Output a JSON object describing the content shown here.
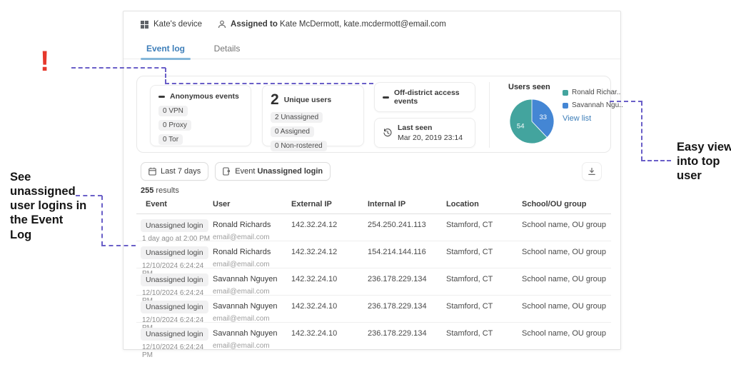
{
  "header": {
    "device_name": "Kate's device",
    "assigned_label": "Assigned to",
    "assigned_value": " Kate McDermott, kate.mcdermott@email.com"
  },
  "tabs": {
    "event_log": "Event log",
    "details": "Details"
  },
  "summary": {
    "anonymous": {
      "title": "Anonymous events",
      "value": "—",
      "badges": [
        "0 VPN",
        "0 Proxy",
        "0 Tor"
      ]
    },
    "unique_users": {
      "title": "Unique users",
      "value": "2",
      "badges": [
        "2 Unassigned",
        "0 Assigned",
        "0 Non-rostered"
      ]
    },
    "off_district": {
      "title": "Off-district access events",
      "value": "—"
    },
    "last_seen": {
      "label": "Last seen",
      "value": "Mar 20, 2019 23:14"
    }
  },
  "users_seen": {
    "title": "Users seen",
    "view_list_label": "View list",
    "chart_data": {
      "type": "pie",
      "title": "Users seen",
      "segments": [
        {
          "label": "Ronald Richar..",
          "value": 54,
          "color": "#43a49e"
        },
        {
          "label": "Savannah Ngu..",
          "value": 33,
          "color": "#4486d4"
        }
      ],
      "legend_position": "right",
      "data_labels": "values shown in white inside slices"
    }
  },
  "filters": {
    "date_chip": "Last 7 days",
    "event_chip_label": "Event ",
    "event_chip_value": "Unassigned login"
  },
  "results": {
    "count": "255",
    "label": " results"
  },
  "table": {
    "columns": [
      "Event",
      "User",
      "External IP",
      "Internal IP",
      "Location",
      "School/OU group"
    ],
    "rows": [
      {
        "event": "Unassigned login",
        "time": "1 day ago at 2:00 PM",
        "user": "Ronald Richards",
        "email": "email@email.com",
        "external_ip": "142.32.24.12",
        "internal_ip": "254.250.241.113",
        "location": "Stamford, CT",
        "school": "School name, OU group"
      },
      {
        "event": "Unassigned login",
        "time": "12/10/2024 6:24:24 PM",
        "user": "Ronald Richards",
        "email": "email@email.com",
        "external_ip": "142.32.24.12",
        "internal_ip": "154.214.144.116",
        "location": "Stamford, CT",
        "school": "School name, OU group"
      },
      {
        "event": "Unassigned login",
        "time": "12/10/2024 6:24:24 PM",
        "user": "Savannah Nguyen",
        "email": "email@email.com",
        "external_ip": "142.32.24.10",
        "internal_ip": "236.178.229.134",
        "location": "Stamford, CT",
        "school": "School name, OU group"
      },
      {
        "event": "Unassigned login",
        "time": "12/10/2024 6:24:24 PM",
        "user": "Savannah Nguyen",
        "email": "email@email.com",
        "external_ip": "142.32.24.10",
        "internal_ip": "236.178.229.134",
        "location": "Stamford, CT",
        "school": "School name, OU group"
      },
      {
        "event": "Unassigned login",
        "time": "12/10/2024 6:24:24 PM",
        "user": "Savannah Nguyen",
        "email": "email@email.com",
        "external_ip": "142.32.24.10",
        "internal_ip": "236.178.229.134",
        "location": "Stamford, CT",
        "school": "School name, OU group"
      }
    ]
  },
  "annotations": {
    "exclamation": "!",
    "left_note": "See unassigned user logins in the Event Log",
    "right_note": "Easy view into top user"
  },
  "colors": {
    "accent_blue": "#3d7eb9",
    "tab_underline": "#85b7d9",
    "pie_teal": "#43a49e",
    "pie_blue": "#4486d4",
    "annotation_purple": "#6a5fc8",
    "annotation_red": "#e6382c"
  }
}
